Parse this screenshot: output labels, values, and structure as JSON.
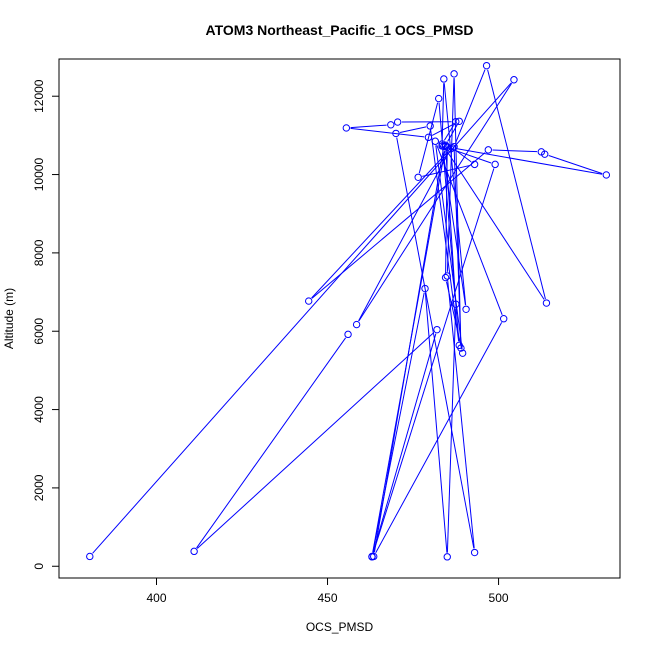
{
  "chart_data": {
    "type": "line",
    "title": "ATOM3 Northeast_Pacific_1 OCS_PMSD",
    "xlabel": "OCS_PMSD",
    "ylabel": "Altitude (m)",
    "xlim": [
      371.5,
      535.5
    ],
    "ylim": [
      -300,
      12950
    ],
    "xticks": [
      400,
      450,
      500
    ],
    "yticks": [
      0,
      2000,
      4000,
      6000,
      8000,
      10000,
      12000
    ],
    "grid": false,
    "legend": "none",
    "color": "#0000ff",
    "marker": "open-circle",
    "series": [
      {
        "points": [
          [
            380.5,
            250
          ],
          [
            504.5,
            12420
          ],
          [
            458.5,
            6170
          ],
          [
            486,
            10660
          ],
          [
            444.5,
            6770
          ],
          [
            497,
            10630
          ],
          [
            512.5,
            10580
          ],
          [
            513.5,
            10520
          ],
          [
            531.5,
            9990
          ],
          [
            486.5,
            10680
          ],
          [
            493,
            10260
          ],
          [
            476.5,
            9930
          ],
          [
            482.5,
            11940
          ],
          [
            488.5,
            5640
          ],
          [
            480,
            11240
          ],
          [
            470,
            11050
          ],
          [
            493,
            350
          ],
          [
            485,
            7410
          ],
          [
            487,
            12570
          ],
          [
            489,
            5570
          ],
          [
            487,
            10710
          ],
          [
            496.5,
            12780
          ],
          [
            514,
            6720
          ],
          [
            484,
            10720
          ],
          [
            463.5,
            250
          ],
          [
            501.5,
            6320
          ],
          [
            481.5,
            10850
          ],
          [
            489.5,
            5440
          ],
          [
            484.5,
            7370
          ],
          [
            485,
            10700
          ],
          [
            483.5,
            10730
          ],
          [
            484.5,
            10750
          ],
          [
            488.5,
            11360
          ],
          [
            479.5,
            10950
          ],
          [
            455.5,
            11190
          ],
          [
            468.5,
            11270
          ],
          [
            470.5,
            11340
          ],
          [
            487.5,
            11350
          ],
          [
            483.5,
            10780
          ],
          [
            484,
            12440
          ],
          [
            490.5,
            6560
          ],
          [
            483.5,
            10730
          ],
          [
            499,
            10260
          ],
          [
            463,
            240
          ],
          [
            478.5,
            7090
          ],
          [
            485,
            240
          ],
          [
            487.5,
            6690
          ],
          [
            484.5,
            10720
          ],
          [
            463,
            250
          ],
          [
            482,
            6040
          ],
          [
            411,
            380
          ],
          [
            456,
            5920
          ]
        ]
      }
    ]
  }
}
